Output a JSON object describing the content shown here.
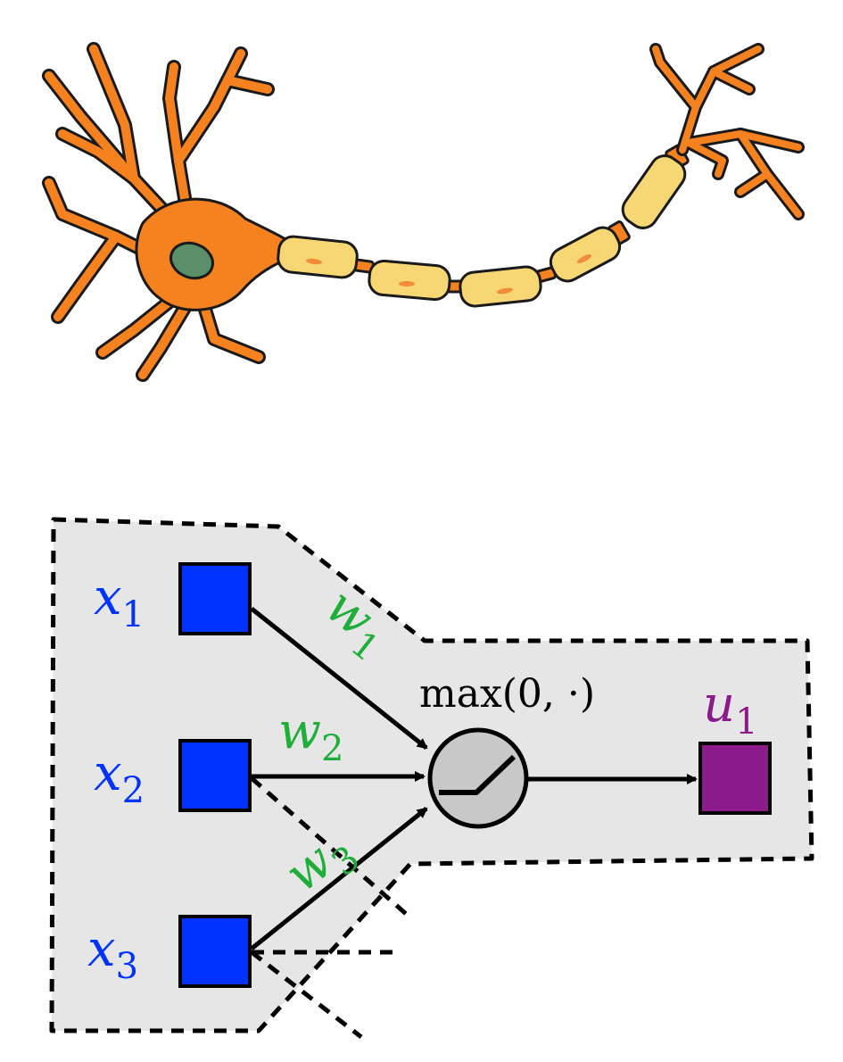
{
  "colors": {
    "neuron_body": "#f5821f",
    "neuron_outline": "#1a1a1a",
    "nucleus": "#5a8f6a",
    "myelin": "#f7d774",
    "myelin_nucleus": "#f28c3a",
    "region_fill": "#e6e6e6",
    "input_node": "#0033ff",
    "output_node": "#8b1a8b",
    "weight_text": "#1fae3a",
    "activation_fill": "#c8c8c8",
    "arrow": "#000000"
  },
  "inputs": [
    {
      "var": "x",
      "sub": "1"
    },
    {
      "var": "x",
      "sub": "2"
    },
    {
      "var": "x",
      "sub": "3"
    }
  ],
  "weights": [
    {
      "var": "w",
      "sub": "1"
    },
    {
      "var": "w",
      "sub": "2"
    },
    {
      "var": "w",
      "sub": "3"
    }
  ],
  "activation": {
    "label": "max(0, ·)"
  },
  "output": {
    "var": "u",
    "sub": "1"
  }
}
